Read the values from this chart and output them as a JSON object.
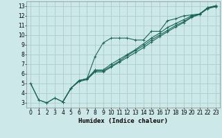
{
  "xlabel": "Humidex (Indice chaleur)",
  "xlim": [
    -0.5,
    23.5
  ],
  "ylim": [
    2.5,
    13.5
  ],
  "xticks": [
    0,
    1,
    2,
    3,
    4,
    5,
    6,
    7,
    8,
    9,
    10,
    11,
    12,
    13,
    14,
    15,
    16,
    17,
    18,
    19,
    20,
    21,
    22,
    23
  ],
  "yticks": [
    3,
    4,
    5,
    6,
    7,
    8,
    9,
    10,
    11,
    12,
    13
  ],
  "bg_color": "#cce8e8",
  "grid_color": "#aacccc",
  "line_color": "#1a6655",
  "lines": [
    {
      "x": [
        0,
        1,
        2,
        3,
        4,
        5,
        6,
        7,
        8,
        9,
        10,
        11,
        12,
        13,
        14,
        15,
        16,
        17,
        18,
        19,
        20,
        21,
        22,
        23
      ],
      "y": [
        5.0,
        3.3,
        3.0,
        3.5,
        3.1,
        4.5,
        5.3,
        5.5,
        7.8,
        9.2,
        9.7,
        9.7,
        9.7,
        9.5,
        9.5,
        10.4,
        10.4,
        11.5,
        11.7,
        12.0,
        12.1,
        12.2,
        12.85,
        13.05
      ]
    },
    {
      "x": [
        0,
        1,
        2,
        3,
        4,
        5,
        6,
        7,
        8,
        9,
        10,
        11,
        12,
        13,
        14,
        15,
        16,
        17,
        18,
        19,
        20,
        21,
        22,
        23
      ],
      "y": [
        5.0,
        3.3,
        3.0,
        3.5,
        3.1,
        4.5,
        5.3,
        5.5,
        6.4,
        6.4,
        7.0,
        7.5,
        8.0,
        8.5,
        9.1,
        9.7,
        10.2,
        10.8,
        11.2,
        11.6,
        12.0,
        12.2,
        12.85,
        13.05
      ]
    },
    {
      "x": [
        4,
        5,
        6,
        7,
        8,
        9,
        10,
        11,
        12,
        13,
        14,
        15,
        16,
        17,
        18,
        19,
        20,
        21,
        22,
        23
      ],
      "y": [
        3.1,
        4.5,
        5.3,
        5.5,
        6.3,
        6.3,
        6.8,
        7.3,
        7.9,
        8.4,
        8.9,
        9.5,
        10.0,
        10.5,
        11.0,
        11.4,
        11.9,
        12.2,
        12.8,
        13.0
      ]
    },
    {
      "x": [
        4,
        5,
        6,
        7,
        8,
        9,
        10,
        11,
        12,
        13,
        14,
        15,
        16,
        17,
        18,
        19,
        20,
        21,
        22,
        23
      ],
      "y": [
        3.1,
        4.5,
        5.2,
        5.4,
        6.2,
        6.2,
        6.7,
        7.2,
        7.7,
        8.2,
        8.7,
        9.3,
        9.85,
        10.35,
        10.85,
        11.3,
        11.85,
        12.15,
        12.75,
        12.95
      ]
    }
  ]
}
